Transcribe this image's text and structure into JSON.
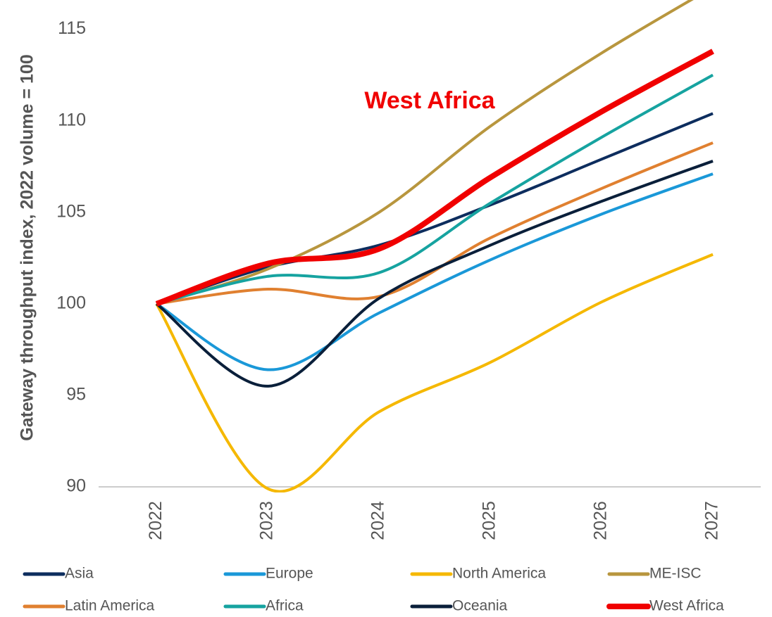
{
  "chart_data": {
    "type": "line",
    "y_label": "Gateway throughput index, 2022 volume = 100",
    "annotation": "West Africa",
    "x": [
      2022,
      2023,
      2024,
      2025,
      2026,
      2027
    ],
    "xlim": [
      2021.48,
      2027.43
    ],
    "ylim": [
      90,
      116.6
    ],
    "yticks": [
      90,
      95,
      100,
      105,
      110,
      115
    ],
    "grid": false,
    "series": [
      {
        "name": "Asia",
        "color": "#0d2d5e",
        "values": [
          100,
          102,
          103.2,
          105.4,
          107.9,
          110.4
        ]
      },
      {
        "name": "Europe",
        "color": "#1a98d8",
        "values": [
          100,
          96.4,
          99.5,
          102.4,
          104.9,
          107.1
        ]
      },
      {
        "name": "North America",
        "color": "#f5b800",
        "values": [
          100,
          89.9,
          94.1,
          96.8,
          100.1,
          102.7
        ]
      },
      {
        "name": "ME-ISC",
        "color": "#b8963e",
        "values": [
          100,
          101.9,
          105,
          109.7,
          113.7,
          117.3
        ]
      },
      {
        "name": "Latin America",
        "color": "#e08030",
        "values": [
          100,
          100.8,
          100.4,
          103.6,
          106.3,
          108.8
        ]
      },
      {
        "name": "Africa",
        "color": "#16a3a0",
        "values": [
          100,
          101.5,
          101.7,
          105.5,
          109.1,
          112.5
        ]
      },
      {
        "name": "Oceania",
        "color": "#0a1f3a",
        "values": [
          100,
          95.5,
          100.3,
          103.2,
          105.6,
          107.8
        ]
      },
      {
        "name": "West Africa",
        "color": "#f00000",
        "values": [
          100,
          102.2,
          103,
          106.9,
          110.5,
          113.8
        ]
      }
    ]
  }
}
